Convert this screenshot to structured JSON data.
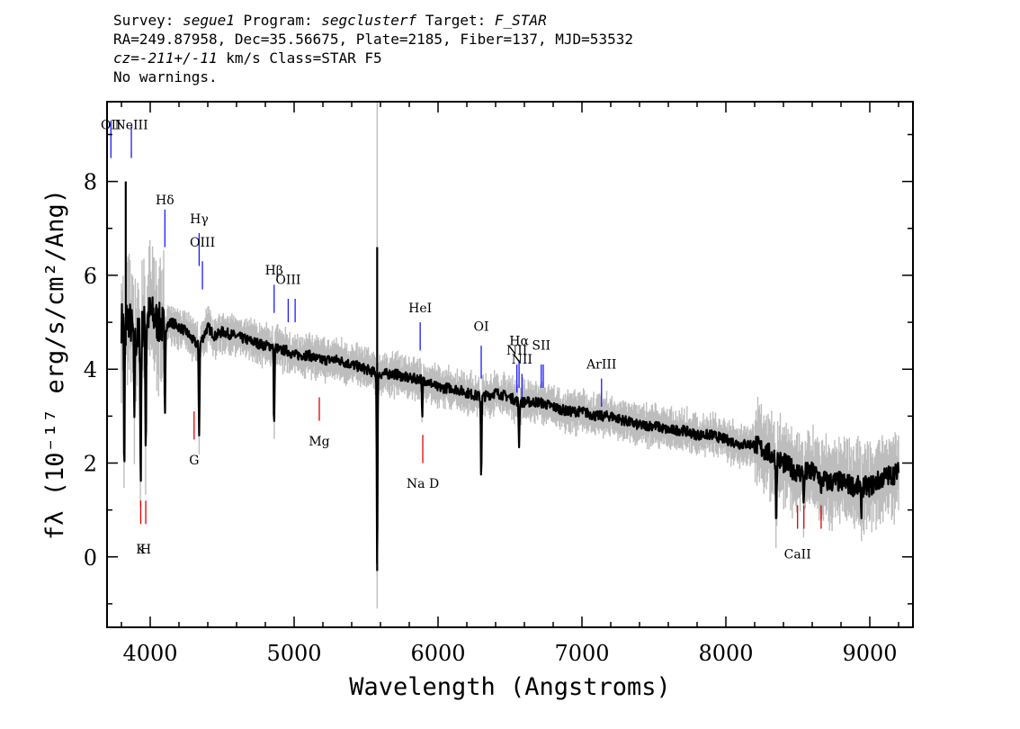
{
  "header": {
    "survey_label": "Survey:",
    "survey": "segue1",
    "program_label": "Program:",
    "program": "segclusterf",
    "target_label": "Target:",
    "target": "F_STAR",
    "line2": "RA=249.87958, Dec=35.56675, Plate=2185, Fiber=137, MJD=53532",
    "cz_label": "cz=",
    "cz": "-211+/-11",
    "cz_rest": " km/s Class=STAR F5",
    "warnings": "No warnings."
  },
  "chart_data": {
    "type": "line",
    "xlabel": "Wavelength (Angstroms)",
    "ylabel": "fλ (10⁻¹⁷ erg/s/cm²/Ang)",
    "xlim": [
      3700,
      9300
    ],
    "ylim": [
      -1.5,
      9.7
    ],
    "x_ticks": [
      "4000",
      "5000",
      "6000",
      "7000",
      "8000",
      "9000"
    ],
    "y_ticks": [
      "0",
      "2",
      "4",
      "6",
      "8"
    ],
    "colors": {
      "flux": "#000000",
      "noise": "#bdbdbd",
      "emission": "#1a1aff",
      "absorption": "#e00000"
    },
    "series": [
      {
        "x": [
          3800,
          3850,
          3900,
          3950,
          4000,
          4050,
          4102,
          4150,
          4200,
          4250,
          4300,
          4340,
          4400,
          4450,
          4500,
          4600,
          4700,
          4800,
          4861,
          4900,
          4950,
          5000,
          5100,
          5175,
          5200,
          5300,
          5400,
          5500,
          5577,
          5600,
          5700,
          5800,
          5890,
          5950,
          6000,
          6100,
          6200,
          6300,
          6400,
          6500,
          6563,
          6600,
          6700,
          6800,
          6900,
          7000,
          7100,
          7200,
          7300,
          7400,
          7500,
          7600,
          7700,
          7800,
          7900,
          8000,
          8100,
          8200,
          8300,
          8350,
          8400,
          8450,
          8500,
          8542,
          8600,
          8662,
          8700,
          8800,
          8900,
          9000,
          9100,
          9200
        ],
        "y": [
          5.0,
          5.1,
          4.6,
          4.9,
          5.2,
          5.0,
          4.9,
          5.0,
          4.9,
          4.8,
          4.6,
          4.5,
          4.9,
          4.7,
          4.8,
          4.7,
          4.6,
          4.5,
          4.5,
          4.4,
          4.4,
          4.3,
          4.3,
          4.2,
          4.2,
          4.2,
          4.1,
          4.0,
          3.9,
          3.9,
          3.9,
          3.8,
          3.8,
          3.7,
          3.6,
          3.6,
          3.5,
          3.4,
          3.5,
          3.4,
          3.3,
          3.3,
          3.3,
          3.2,
          3.1,
          3.1,
          3.0,
          3.0,
          2.9,
          2.8,
          2.8,
          2.7,
          2.7,
          2.6,
          2.6,
          2.5,
          2.4,
          2.4,
          2.2,
          2.1,
          2.0,
          1.9,
          1.8,
          1.8,
          1.8,
          1.7,
          1.6,
          1.6,
          1.5,
          1.5,
          1.7,
          1.8
        ]
      }
    ],
    "absorption_dips": [
      {
        "x": 3820,
        "y": 1.6
      },
      {
        "x": 3889,
        "y": 3.0
      },
      {
        "x": 3934,
        "y": 1.4
      },
      {
        "x": 3969,
        "y": 2.3
      },
      {
        "x": 4102,
        "y": 3.0
      },
      {
        "x": 4340,
        "y": 2.6
      },
      {
        "x": 4861,
        "y": 2.7
      },
      {
        "x": 5577,
        "y": -0.3
      },
      {
        "x": 5890,
        "y": 2.9
      },
      {
        "x": 6300,
        "y": 1.7
      },
      {
        "x": 6563,
        "y": 2.4
      },
      {
        "x": 8350,
        "y": 0.7
      },
      {
        "x": 8542,
        "y": 1.1
      },
      {
        "x": 8662,
        "y": 1.2
      },
      {
        "x": 8940,
        "y": 0.9
      }
    ],
    "emission_lines": [
      {
        "label": "OII",
        "x": 3727,
        "y_lo": 8.5,
        "y_hi": 9.3,
        "label_y": 9.0
      },
      {
        "label": "NeIII",
        "x": 3869,
        "y_lo": 8.5,
        "y_hi": 9.2,
        "label_y": 9.0
      },
      {
        "label": "Hδ",
        "x": 4102,
        "y_lo": 6.6,
        "y_hi": 7.4,
        "label_y": 7.4
      },
      {
        "label": "Hγ",
        "x": 4340,
        "y_lo": 6.2,
        "y_hi": 6.9,
        "label_y": 7.0
      },
      {
        "label": "OIII",
        "x": 4363,
        "y_lo": 5.7,
        "y_hi": 6.3,
        "label_y": 6.5
      },
      {
        "label": "Hβ",
        "x": 4861,
        "y_lo": 5.2,
        "y_hi": 5.8,
        "label_y": 5.9
      },
      {
        "label": "OIII",
        "x": 4959,
        "y_lo": 5.0,
        "y_hi": 5.5,
        "label_y": 5.7
      },
      {
        "label": "",
        "x": 5007,
        "y_lo": 5.0,
        "y_hi": 5.5,
        "label_y": 5.7
      },
      {
        "label": "HeI",
        "x": 5876,
        "y_lo": 4.4,
        "y_hi": 5.0,
        "label_y": 5.1
      },
      {
        "label": "OI",
        "x": 6300,
        "y_lo": 3.8,
        "y_hi": 4.5,
        "label_y": 4.7
      },
      {
        "label": "NII",
        "x": 6548,
        "y_lo": 3.5,
        "y_hi": 4.1,
        "label_y": 4.2
      },
      {
        "label": "Hα",
        "x": 6563,
        "y_lo": 3.6,
        "y_hi": 4.2,
        "label_y": 4.4
      },
      {
        "label": "NII",
        "x": 6583,
        "y_lo": 3.4,
        "y_hi": 3.9,
        "label_y": 4.0
      },
      {
        "label": "SII",
        "x": 6717,
        "y_lo": 3.6,
        "y_hi": 4.1,
        "label_y": 4.3
      },
      {
        "label": "",
        "x": 6731,
        "y_lo": 3.6,
        "y_hi": 4.1,
        "label_y": 4.3
      },
      {
        "label": "ArIII",
        "x": 7136,
        "y_lo": 3.2,
        "y_hi": 3.8,
        "label_y": 3.9
      }
    ],
    "absorption_lines": [
      {
        "label": "K",
        "x": 3934,
        "y_lo": 0.7,
        "y_hi": 1.2,
        "label_y": 0.3
      },
      {
        "label": "H",
        "x": 3969,
        "y_lo": 0.7,
        "y_hi": 1.2,
        "label_y": 0.3
      },
      {
        "label": "G",
        "x": 4305,
        "y_lo": 2.5,
        "y_hi": 3.1,
        "label_y": 2.2
      },
      {
        "label": "Mg",
        "x": 5175,
        "y_lo": 2.9,
        "y_hi": 3.4,
        "label_y": 2.6
      },
      {
        "label": "Na D",
        "x": 5894,
        "y_lo": 2.0,
        "y_hi": 2.6,
        "label_y": 1.7
      },
      {
        "label": "CaII",
        "x": 8498,
        "y_lo": 0.6,
        "y_hi": 1.1,
        "label_y": 0.2
      },
      {
        "label": "",
        "x": 8542,
        "y_lo": 0.6,
        "y_hi": 1.1,
        "label_y": 0.2
      },
      {
        "label": "",
        "x": 8662,
        "y_lo": 0.6,
        "y_hi": 1.1,
        "label_y": 0.2
      }
    ]
  }
}
